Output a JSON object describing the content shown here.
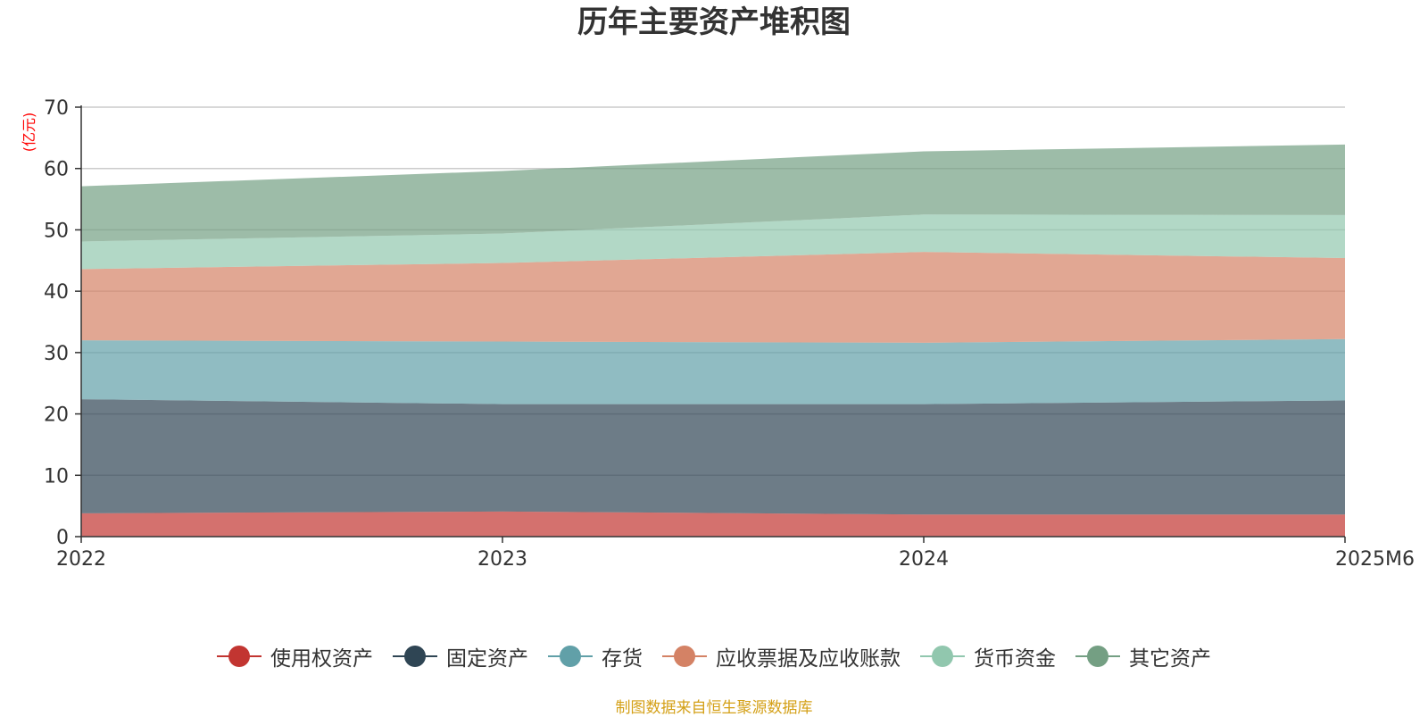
{
  "chart_data": {
    "type": "area",
    "stacked": true,
    "title": "历年主要资产堆积图",
    "ylabel": "(亿元)",
    "xlabel": "",
    "x": [
      "2022",
      "2023",
      "2024",
      "2025M6"
    ],
    "ylim": [
      0,
      70
    ],
    "yticks": [
      0,
      10,
      20,
      30,
      40,
      50,
      60,
      70
    ],
    "grid": true,
    "legend_position": "bottom",
    "series": [
      {
        "name": "使用权资产",
        "color": "#c23531",
        "values": [
          3.8,
          4.1,
          3.6,
          3.6
        ]
      },
      {
        "name": "固定资产",
        "color": "#2f4554",
        "values": [
          18.6,
          17.5,
          18.0,
          18.6
        ]
      },
      {
        "name": "存货",
        "color": "#61a0a8",
        "values": [
          9.6,
          10.2,
          10.0,
          10.0
        ]
      },
      {
        "name": "应收票据及应收账款",
        "color": "#d48265",
        "values": [
          11.6,
          12.8,
          14.8,
          13.2
        ]
      },
      {
        "name": "货币资金",
        "color": "#91c7ae",
        "values": [
          4.5,
          4.8,
          6.1,
          7.0
        ]
      },
      {
        "name": "其它资产",
        "color": "#749f83",
        "values": [
          9.0,
          10.2,
          10.3,
          11.5
        ]
      }
    ]
  },
  "source": "制图数据来自恒生聚源数据库"
}
